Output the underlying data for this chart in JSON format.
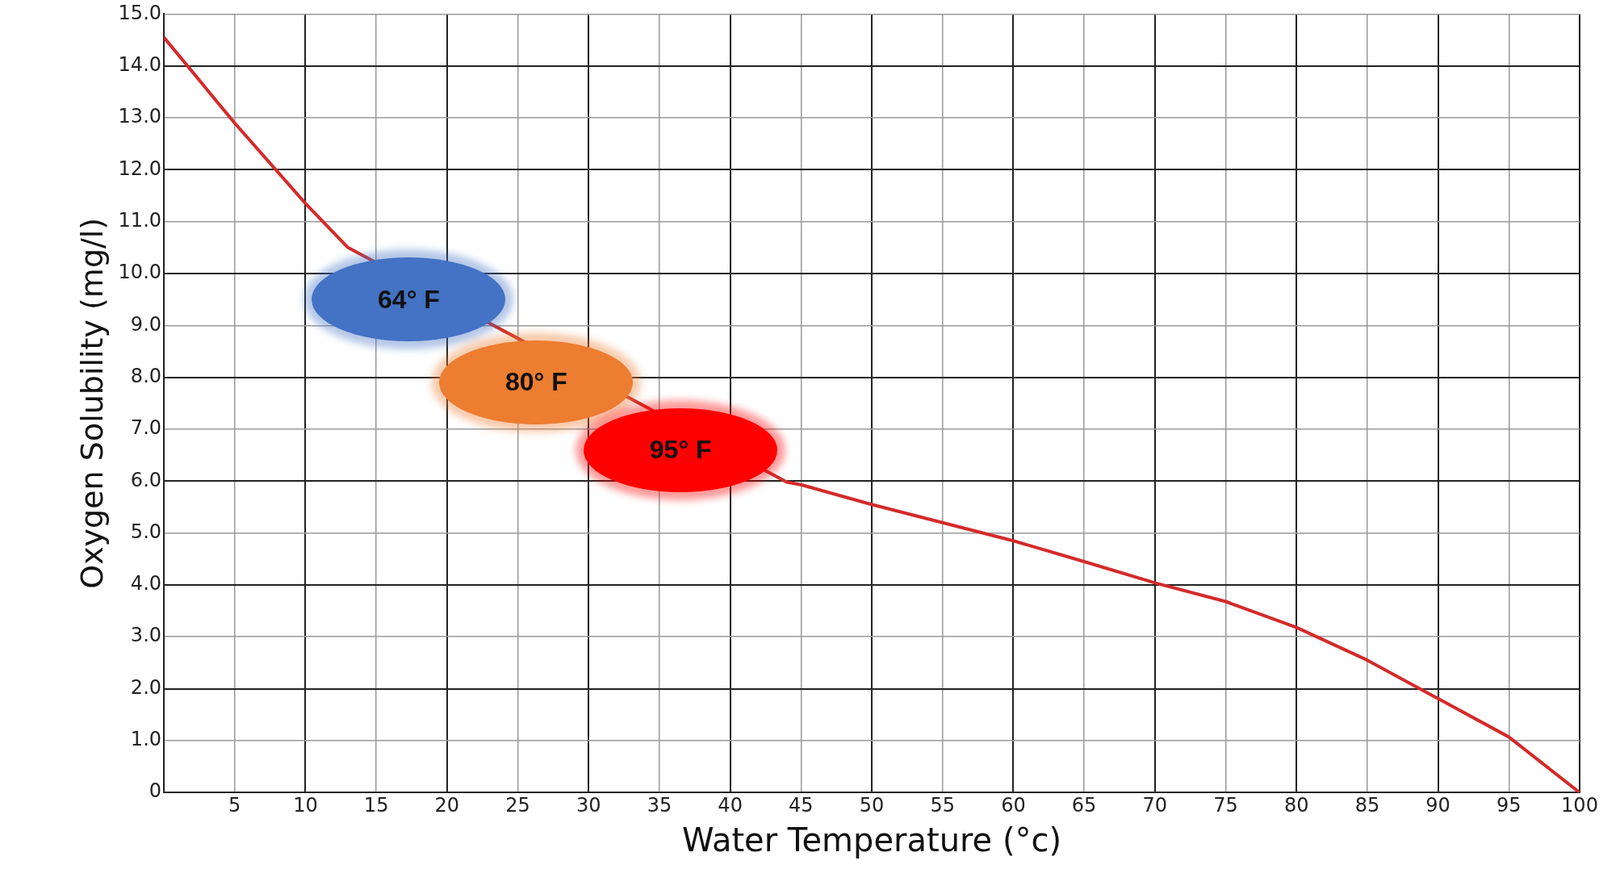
{
  "chart_data": {
    "type": "line",
    "xlabel": "Water Temperature (°c)",
    "ylabel": "Oxygen Solubility (mg/l)",
    "series": [
      {
        "color": "#d42a2a",
        "x": [
          0,
          5,
          10,
          13,
          44,
          45,
          50,
          55,
          60,
          65,
          70,
          75,
          80,
          85,
          90,
          95,
          100
        ],
        "values": [
          14.55,
          12.9,
          11.35,
          10.5,
          5.98,
          5.93,
          5.55,
          5.2,
          4.85,
          4.45,
          4.04,
          3.68,
          3.18,
          2.55,
          1.81,
          1.07,
          0
        ]
      }
    ],
    "xlim": [
      0,
      100
    ],
    "xticks": [
      {
        "value": 0,
        "label": null
      },
      5,
      10,
      15,
      20,
      25,
      30,
      35,
      40,
      45,
      50,
      55,
      60,
      65,
      70,
      75,
      80,
      85,
      90,
      95,
      100
    ],
    "ylim": [
      0,
      15
    ],
    "yticks": [
      {
        "value": 0,
        "label": "0"
      },
      {
        "value": 1,
        "label": "1.0"
      },
      {
        "value": 2,
        "label": "2.0"
      },
      {
        "value": 3,
        "label": "3.0"
      },
      {
        "value": 4,
        "label": "4.0"
      },
      {
        "value": 5,
        "label": "5.0"
      },
      {
        "value": 6,
        "label": "6.0"
      },
      {
        "value": 7,
        "label": "7.0"
      },
      {
        "value": 8,
        "label": "8.0"
      },
      {
        "value": 9,
        "label": "9.0"
      },
      {
        "value": 10,
        "label": "10.0"
      },
      {
        "value": 11,
        "label": "11.0"
      },
      {
        "value": 12,
        "label": "12.0"
      },
      {
        "value": 13,
        "label": "13.0"
      },
      {
        "value": 14,
        "label": "14.0"
      },
      {
        "value": 15,
        "label": "15.0"
      }
    ],
    "annotations": [
      "64° F",
      "80° F",
      "95° F"
    ],
    "grid": true,
    "legend": false,
    "marker": "none",
    "line_style": "solid"
  }
}
